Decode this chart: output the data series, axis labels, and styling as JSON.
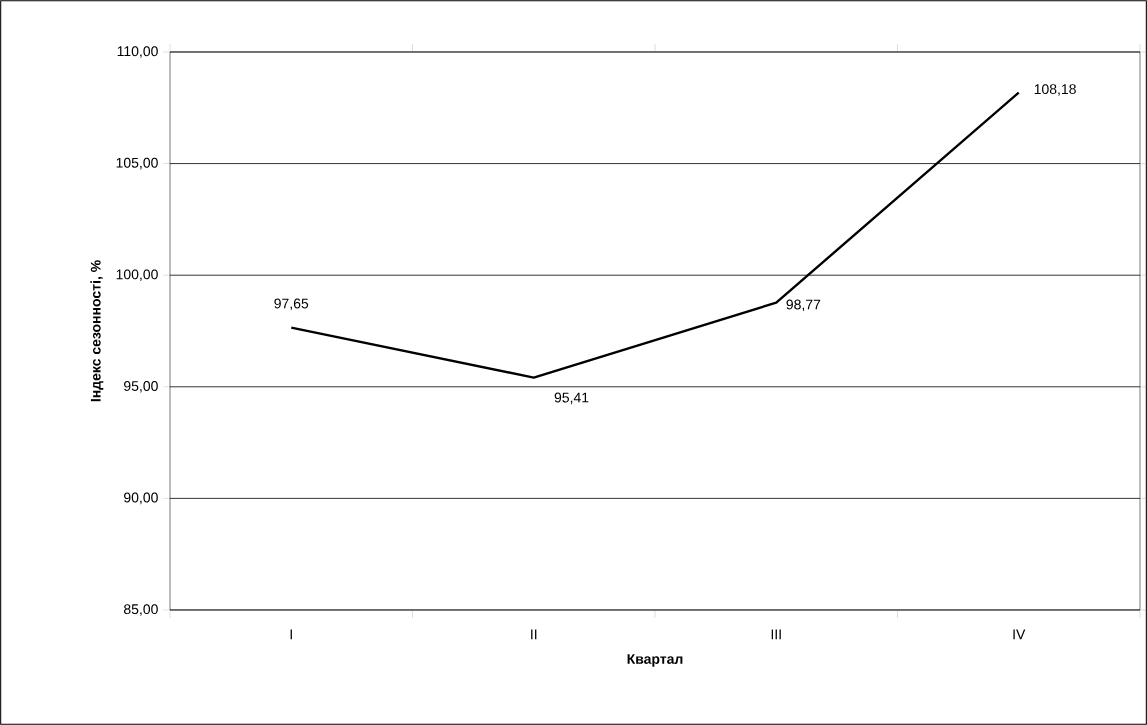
{
  "chart_data": {
    "type": "line",
    "xlabel": "Квартал",
    "ylabel": "Індекс сезонності, %",
    "categories": [
      "I",
      "II",
      "III",
      "IV"
    ],
    "series": [
      {
        "color": "#000000",
        "values": [
          97.65,
          95.41,
          98.77,
          108.18
        ],
        "value_labels": [
          "97,65",
          "95,41",
          "98,77",
          "108,18"
        ]
      }
    ],
    "ylim": [
      85,
      110
    ],
    "yticks": [
      {
        "value": 85,
        "label": "85,00"
      },
      {
        "value": 90,
        "label": "90,00"
      },
      {
        "value": 95,
        "label": "95,00"
      },
      {
        "value": 100,
        "label": "100,00"
      },
      {
        "value": 105,
        "label": "105,00"
      },
      {
        "value": 110,
        "label": "110,00"
      }
    ],
    "grid": "y",
    "marker": "none",
    "line_style": "solid"
  }
}
